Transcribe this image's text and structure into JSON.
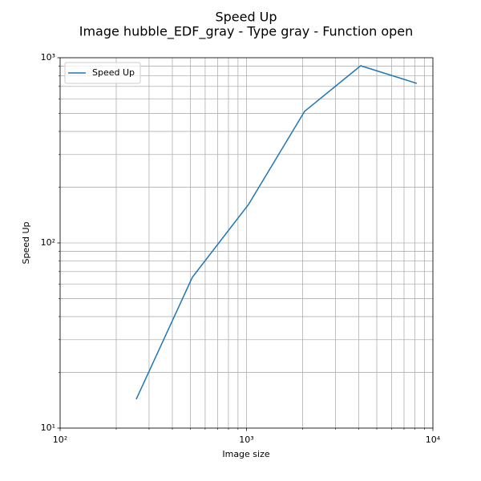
{
  "chart_data": {
    "type": "line",
    "title": "Speed Up",
    "subtitle": "Image hubble_EDF_gray - Type gray - Function open",
    "x_label": "Image size",
    "y_label": "Speed Up",
    "x": [
      256,
      512,
      1024,
      2048,
      4096,
      8192
    ],
    "series": [
      {
        "name": "Speed Up",
        "color": "#1f77b4",
        "values": [
          14.3,
          65.2,
          161,
          513,
          905,
          727
        ]
      }
    ],
    "xscale": "log",
    "yscale": "log",
    "xlim": [
      100,
      10000
    ],
    "ylim": [
      10,
      1000
    ],
    "xticks": [
      {
        "value": 100,
        "label": "10²"
      },
      {
        "value": 1000,
        "label": "10³"
      },
      {
        "value": 10000,
        "label": "10⁴"
      }
    ],
    "yticks": [
      {
        "value": 10,
        "label": "10¹"
      },
      {
        "value": 100,
        "label": "10²"
      },
      {
        "value": 1000,
        "label": "10³"
      }
    ],
    "xminorticks": [
      200,
      300,
      400,
      500,
      600,
      700,
      800,
      900,
      2000,
      3000,
      4000,
      5000,
      6000,
      7000,
      8000,
      9000
    ],
    "yminorticks": [
      20,
      30,
      40,
      50,
      60,
      70,
      80,
      90,
      200,
      300,
      400,
      500,
      600,
      700,
      800,
      900
    ],
    "grid": true,
    "legend": "upper left"
  }
}
